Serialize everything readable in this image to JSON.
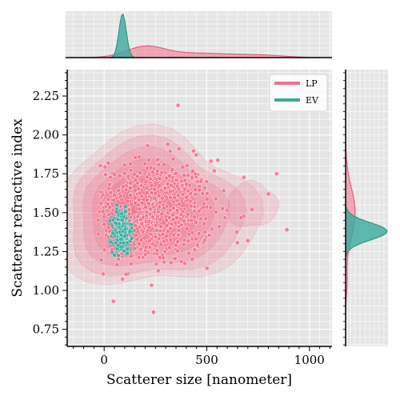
{
  "chart_data": {
    "type": "scatter",
    "xlabel": "Scatterer size [nanometer]",
    "ylabel": "Scatterer refractive index",
    "xlim": [
      -180,
      1110
    ],
    "ylim": [
      0.64,
      2.42
    ],
    "xticks": [
      0,
      500,
      1000
    ],
    "yticks": [
      0.75,
      1.0,
      1.25,
      1.5,
      1.75,
      2.0,
      2.25
    ],
    "xtick_labels": [
      "0",
      "500",
      "1000"
    ],
    "ytick_labels": [
      "0.75",
      "1.00",
      "1.25",
      "1.50",
      "1.75",
      "2.00",
      "2.25"
    ],
    "grid": true,
    "legend_placement": "top-right",
    "series": [
      {
        "name": "LP",
        "color": "#f2708a",
        "center": [
          230,
          1.5
        ],
        "spread": [
          150,
          0.17
        ],
        "count": 700,
        "kde_x_peak": 200,
        "kde_y_peak": 1.5,
        "outliers": [
          [
            360,
            2.19
          ],
          [
            310,
            1.94
          ],
          [
            240,
            0.86
          ],
          [
            720,
            1.52
          ],
          [
            840,
            1.75
          ],
          [
            890,
            1.39
          ],
          [
            700,
            1.32
          ],
          [
            45,
            0.93
          ],
          [
            800,
            1.62
          ],
          [
            20,
            1.82
          ]
        ]
      },
      {
        "name": "EV",
        "color": "#3aaa9e",
        "center": [
          85,
          1.38
        ],
        "spread": [
          22,
          0.07
        ],
        "count": 220,
        "kde_x_peak": 90,
        "kde_y_peak": 1.38
      }
    ]
  }
}
